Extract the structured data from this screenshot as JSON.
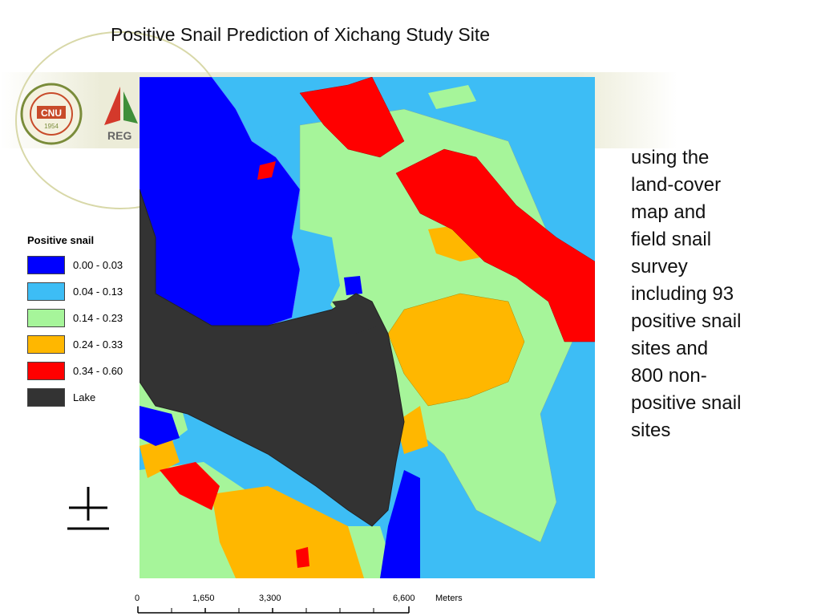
{
  "title": "Positive Snail Prediction of Xichang Study Site",
  "logos": [
    {
      "icon": "cnu-seal-logo",
      "text": "CNU",
      "sub": "1954"
    },
    {
      "icon": "red-sail-logo",
      "text": "REG"
    }
  ],
  "legend": {
    "title": "Positive snail",
    "items": [
      {
        "label": "0.00 - 0.03",
        "color": "#0000ff"
      },
      {
        "label": "0.04 - 0.13",
        "color": "#3dbdf5"
      },
      {
        "label": "0.14 - 0.23",
        "color": "#a6f59a"
      },
      {
        "label": "0.24 - 0.33",
        "color": "#ffb700"
      },
      {
        "label": "0.34 - 0.60",
        "color": "#ff0000"
      },
      {
        "label": "Lake",
        "color": "#333333"
      }
    ]
  },
  "side_text": "using the\nland-cover\nmap and\nfield snail\nsurvey\nincluding 93\npositive snail\nsites and\n800 non-\npositive snail\nsites",
  "north_arrow": {
    "icon": "north-arrow-icon"
  },
  "scale_bar": {
    "labels": [
      "0",
      "1,650",
      "3,300",
      "6,600"
    ],
    "unit": "Meters"
  }
}
